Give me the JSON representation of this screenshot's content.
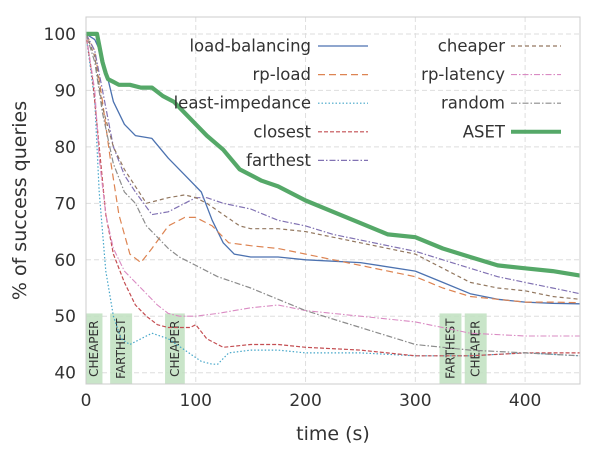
{
  "chart_data": {
    "type": "line",
    "xlabel": "time (s)",
    "ylabel": "% of success queries",
    "xlim": [
      0,
      450
    ],
    "ylim": [
      38,
      103
    ],
    "xticks": [
      0,
      100,
      200,
      300,
      400
    ],
    "yticks": [
      40,
      50,
      60,
      70,
      80,
      90,
      100
    ],
    "grid": true,
    "legend_position": "top-right, two columns",
    "series": [
      {
        "name": "load-balancing",
        "color": "#4c72b0",
        "dash": "solid",
        "width": 1.3,
        "x": [
          0,
          8,
          15,
          25,
          35,
          45,
          60,
          75,
          90,
          105,
          115,
          125,
          135,
          150,
          175,
          200,
          250,
          300,
          325,
          350,
          375,
          400,
          425,
          450
        ],
        "y": [
          100,
          99,
          96,
          88,
          84,
          82,
          81.5,
          78,
          75,
          72,
          67,
          63,
          61,
          60.5,
          60.5,
          60,
          59.5,
          58,
          56,
          54,
          53,
          52.5,
          52.3,
          52.2
        ]
      },
      {
        "name": "rp-load",
        "color": "#dd8452",
        "dash": "7,4",
        "width": 1.2,
        "x": [
          0,
          8,
          15,
          22,
          30,
          40,
          50,
          60,
          75,
          90,
          100,
          115,
          130,
          150,
          175,
          200,
          250,
          300,
          325,
          350,
          375,
          400,
          425,
          450
        ],
        "y": [
          100,
          97,
          88,
          78,
          68,
          61,
          59.5,
          62,
          66,
          67.5,
          67.5,
          66,
          63,
          62.5,
          62,
          61,
          59,
          57,
          55,
          53.5,
          53,
          52.5,
          52.5,
          52.4
        ]
      },
      {
        "name": "least-impedance",
        "color": "#45a6c9",
        "dash": "1.5,2",
        "width": 1.2,
        "x": [
          0,
          8,
          12,
          18,
          25,
          32,
          40,
          50,
          60,
          75,
          90,
          105,
          115,
          120,
          130,
          150,
          175,
          200,
          250,
          300,
          350,
          400,
          450
        ],
        "y": [
          100,
          88,
          72,
          58,
          50,
          46,
          45,
          46,
          47,
          46,
          44,
          42,
          41.5,
          41.5,
          43.5,
          44,
          44,
          43.5,
          43.5,
          43,
          43,
          43.5,
          43
        ]
      },
      {
        "name": "closest",
        "color": "#c44e52",
        "dash": "4,2",
        "width": 1.2,
        "x": [
          0,
          6,
          12,
          18,
          25,
          35,
          45,
          55,
          65,
          75,
          85,
          95,
          100,
          110,
          125,
          150,
          175,
          200,
          250,
          300,
          350,
          400,
          450
        ],
        "y": [
          100,
          92,
          80,
          68,
          61,
          56,
          52,
          50,
          48.5,
          48,
          48,
          48,
          48.5,
          46,
          44.5,
          45,
          45,
          44.5,
          44,
          43,
          43,
          43.5,
          43.5
        ]
      },
      {
        "name": "farthest",
        "color": "#8172b3",
        "dash": "6,2,1.5,2",
        "width": 1.2,
        "x": [
          0,
          8,
          15,
          25,
          35,
          45,
          60,
          75,
          90,
          100,
          110,
          125,
          150,
          175,
          200,
          225,
          250,
          275,
          300,
          325,
          350,
          375,
          400,
          425,
          450
        ],
        "y": [
          100,
          97,
          90,
          80,
          75,
          72,
          68,
          68.5,
          70,
          71,
          71,
          70,
          69,
          67,
          66,
          64.5,
          63.5,
          62.5,
          61.5,
          60,
          58.5,
          57,
          56,
          55,
          54
        ]
      },
      {
        "name": "cheaper",
        "color": "#937860",
        "dash": "4,3",
        "width": 1.2,
        "x": [
          0,
          8,
          15,
          25,
          35,
          45,
          55,
          65,
          75,
          90,
          100,
          110,
          125,
          140,
          150,
          175,
          200,
          250,
          300,
          325,
          350,
          375,
          400,
          425,
          450
        ],
        "y": [
          100,
          96,
          87,
          80,
          76,
          73,
          70,
          70.5,
          71,
          71.5,
          71,
          70,
          68,
          66,
          65.5,
          65.5,
          65,
          63,
          61,
          58.5,
          56,
          55,
          54.5,
          53.5,
          53
        ]
      },
      {
        "name": "rp-latency",
        "color": "#da8bc3",
        "dash": "6,2,1.5,2",
        "width": 1.1,
        "x": [
          0,
          8,
          12,
          18,
          25,
          35,
          45,
          55,
          65,
          75,
          85,
          100,
          120,
          150,
          175,
          200,
          250,
          300,
          350,
          400,
          450
        ],
        "y": [
          100,
          90,
          78,
          68,
          62,
          58,
          56,
          54,
          52,
          50.5,
          50,
          50,
          50.5,
          51.5,
          52,
          51,
          50,
          49,
          47,
          46.5,
          46.5
        ]
      },
      {
        "name": "random",
        "color": "#8c8c8c",
        "dash": "6,2,1.5,2",
        "width": 1.2,
        "x": [
          0,
          8,
          15,
          25,
          35,
          45,
          55,
          65,
          75,
          85,
          100,
          120,
          150,
          175,
          200,
          225,
          250,
          275,
          300,
          325,
          350,
          400,
          450
        ],
        "y": [
          100,
          95,
          86,
          77,
          72,
          70,
          66,
          64,
          62,
          60.5,
          59,
          57,
          55,
          53,
          51,
          49.5,
          48,
          46.5,
          45,
          44.5,
          44,
          43.5,
          43
        ]
      },
      {
        "name": "ASET",
        "color": "#55a868",
        "dash": "solid",
        "width": 4.2,
        "x": [
          0,
          10,
          12,
          15,
          18,
          20,
          25,
          30,
          40,
          50,
          60,
          70,
          80,
          90,
          100,
          110,
          125,
          140,
          160,
          175,
          200,
          225,
          250,
          275,
          300,
          325,
          350,
          375,
          400,
          425,
          450
        ],
        "y": [
          100,
          100,
          98,
          95,
          93,
          92,
          91.5,
          91,
          91,
          90.5,
          90.5,
          89,
          88,
          86,
          84,
          82,
          79.5,
          76,
          74,
          73,
          70.5,
          68.5,
          66.5,
          64.5,
          64,
          62,
          60.5,
          59,
          58.5,
          58,
          57.2
        ]
      }
    ],
    "annotations": [
      {
        "label": "CHEAPER",
        "x": [
          0,
          15
        ],
        "color": "#bfe0bf"
      },
      {
        "label": "FARTHEST",
        "x": [
          22,
          42
        ],
        "color": "#bfe0bf"
      },
      {
        "label": "CHEAPER",
        "x": [
          72,
          90
        ],
        "color": "#bfe0bf"
      },
      {
        "label": "FARTHEST",
        "x": [
          322,
          342
        ],
        "color": "#bfe0bf"
      },
      {
        "label": "CHEAPER",
        "x": [
          345,
          365
        ],
        "color": "#bfe0bf"
      }
    ]
  }
}
